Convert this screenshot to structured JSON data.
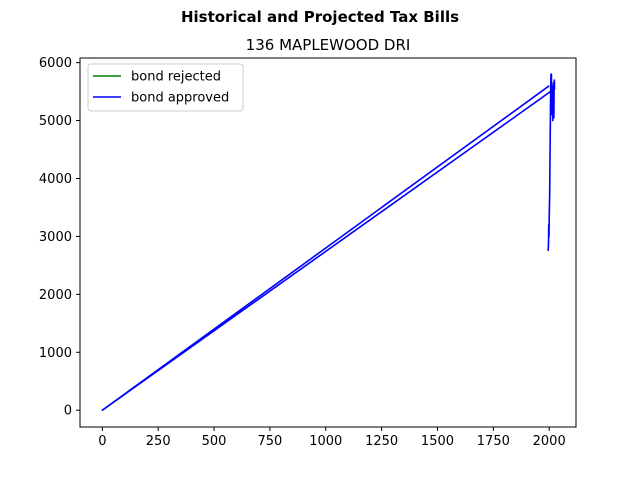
{
  "chart_data": {
    "type": "line",
    "title": "Historical and Projected Tax Bills",
    "subtitle": "136 MAPLEWOOD DRI",
    "xlabel": "",
    "ylabel": "",
    "xlim": [
      -100,
      2120
    ],
    "ylim": [
      -290,
      6080
    ],
    "xticks": [
      0,
      250,
      500,
      750,
      1000,
      1250,
      1500,
      1750,
      2000
    ],
    "yticks": [
      0,
      1000,
      2000,
      3000,
      4000,
      5000,
      6000
    ],
    "grid": false,
    "legend_position": "top-left",
    "series": [
      {
        "name": "bond rejected",
        "color": "#008000",
        "x": [
          2018,
          2019,
          2020,
          2021,
          2022
        ],
        "y": [
          5050,
          5300,
          5450,
          5550,
          5600
        ]
      },
      {
        "name": "bond approved",
        "color": "#0000ff",
        "x": [
          1995,
          1996,
          1997,
          1998,
          1999,
          2000,
          2001,
          2002,
          2003,
          2004,
          2005,
          2006,
          2007,
          2008,
          2009,
          2010,
          2011,
          2012,
          2013,
          2014,
          2015,
          2016,
          2017,
          2018,
          2019,
          2020,
          2021,
          2022,
          2023,
          2024,
          0,
          2000
        ],
        "y": [
          2750,
          2800,
          2900,
          3200,
          3000,
          3300,
          3500,
          3700,
          4100,
          4500,
          4900,
          5300,
          5600,
          5800,
          5700,
          5800,
          5400,
          5300,
          5100,
          5200,
          5400,
          5000,
          5600,
          5100,
          5650,
          5200,
          5050,
          5600,
          5700,
          5550,
          0,
          5600
        ]
      }
    ]
  }
}
